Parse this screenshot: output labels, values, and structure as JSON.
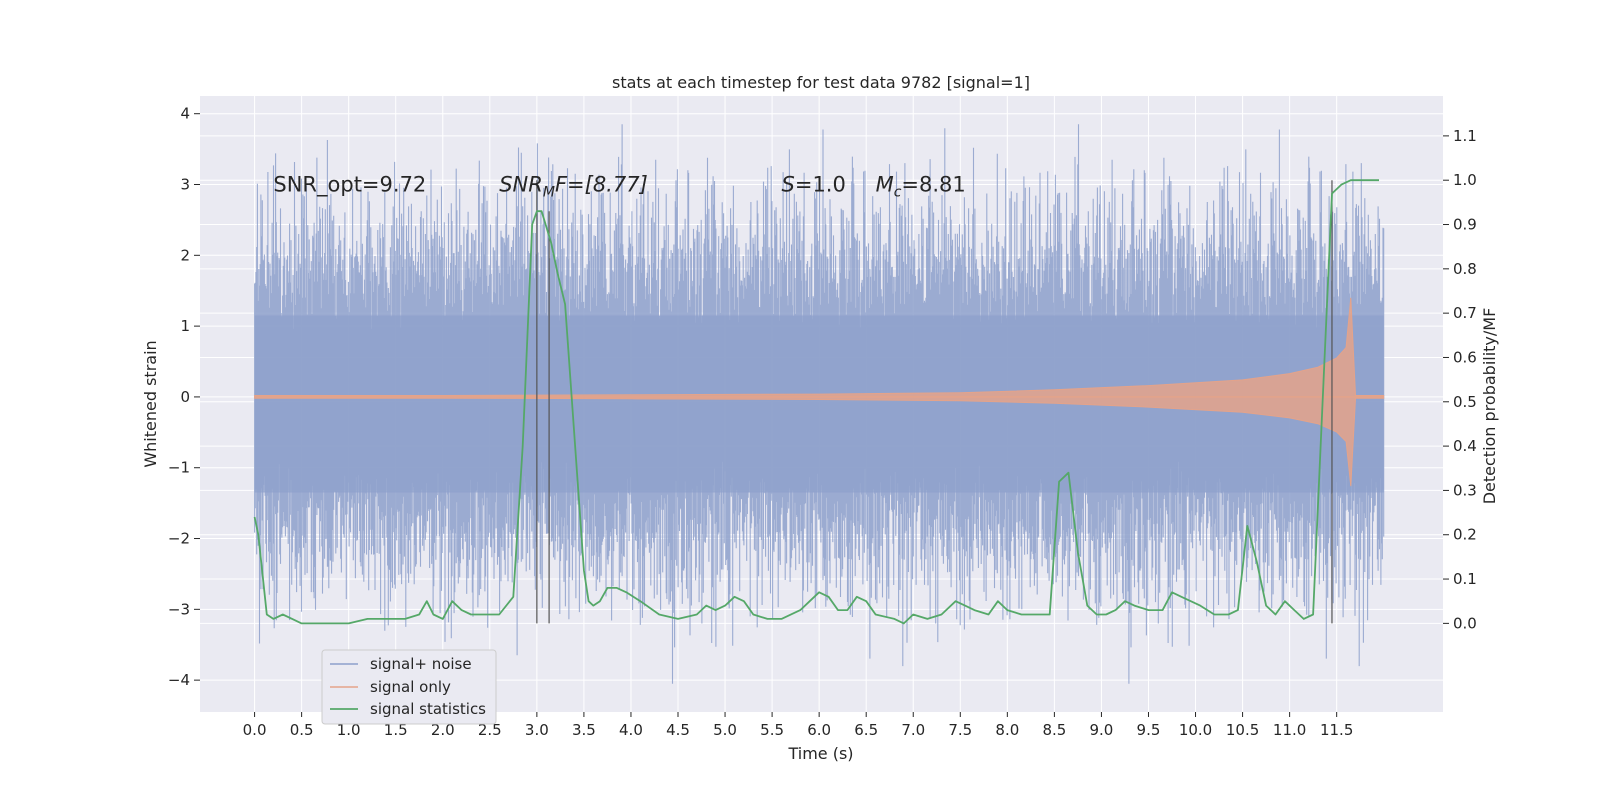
{
  "chart_data": {
    "type": "line",
    "title": "stats at each timestep for test data 9782 [signal=1]",
    "xlabel": "Time (s)",
    "ylabel": "Whitened strain",
    "ylabel_right": "Detection probability/MF",
    "xlim": [
      -0.58,
      12.63
    ],
    "ylim": [
      -4.45,
      4.25
    ],
    "ylim_right": [
      -0.2,
      1.19
    ],
    "x_ticks": [
      0.0,
      0.5,
      1.0,
      1.5,
      2.0,
      2.5,
      3.0,
      3.5,
      4.0,
      4.5,
      5.0,
      5.5,
      6.0,
      6.5,
      7.0,
      7.5,
      8.0,
      8.5,
      9.0,
      9.5,
      10.0,
      10.5,
      11.0,
      11.5
    ],
    "x_tick_labels": [
      "0.0",
      "0.5",
      "1.0",
      "1.5",
      "2.0",
      "2.5",
      "3.0",
      "3.5",
      "4.0",
      "4.5",
      "5.0",
      "5.5",
      "6.0",
      "6.5",
      "7.0",
      "7.5",
      "8.0",
      "8.5",
      "9.0",
      "9.5",
      "10.0",
      "10.5",
      "11.0",
      "11.5"
    ],
    "y_ticks": [
      -4,
      -3,
      -2,
      -1,
      0,
      1,
      2,
      3,
      4
    ],
    "y_tick_labels": [
      "−4",
      "−3",
      "−2",
      "−1",
      "0",
      "1",
      "2",
      "3",
      "4"
    ],
    "y_right_ticks": [
      0.0,
      0.1,
      0.2,
      0.3,
      0.4,
      0.5,
      0.6,
      0.7,
      0.8,
      0.9,
      1.0,
      1.1
    ],
    "y_right_tick_labels": [
      "0.0",
      "0.1",
      "0.2",
      "0.3",
      "0.4",
      "0.5",
      "0.6",
      "0.7",
      "0.8",
      "0.9",
      "1.0",
      "1.1"
    ],
    "grid": true,
    "legend_position": "lower-left",
    "annotations": [
      {
        "text": "SNR_opt=9.72",
        "x": 0.2,
        "y": 3.0
      },
      {
        "text": "SNR",
        "sub": "M",
        "rest": "F=[8.77]",
        "italic": true,
        "x": 2.6,
        "y": 3.0
      },
      {
        "text": "S",
        "rest": "=1.0",
        "italic": true,
        "x": 5.6,
        "y": 3.0
      },
      {
        "text": "M",
        "sub": "c",
        "rest": "=8.81",
        "italic": true,
        "x": 6.6,
        "y": 3.0
      }
    ],
    "vertical_lines": [
      {
        "x": 3.0,
        "from": 0.0,
        "to": 1.0
      },
      {
        "x": 3.13,
        "from": 0.0,
        "to": 0.93
      },
      {
        "x": 11.45,
        "from": 0.0,
        "to": 1.0
      }
    ],
    "series": [
      {
        "name": "signal+ noise",
        "color": "#8da0cb",
        "axis": "left",
        "kind": "noise",
        "x_range": [
          0.0,
          12.0
        ],
        "envelope_sigma": 1.0,
        "peak_max": 3.85,
        "peak_min": -4.05
      },
      {
        "name": "signal only",
        "color": "#e4a38a",
        "axis": "left",
        "kind": "chirp",
        "x": [
          0.0,
          2.0,
          4.0,
          6.0,
          7.5,
          8.5,
          9.5,
          10.5,
          11.0,
          11.3,
          11.5,
          11.6,
          11.65,
          11.7,
          11.8,
          12.0
        ],
        "amplitude": [
          0.02,
          0.02,
          0.03,
          0.04,
          0.06,
          0.1,
          0.16,
          0.24,
          0.33,
          0.42,
          0.55,
          0.7,
          1.4,
          0.02,
          0.02,
          0.02
        ]
      },
      {
        "name": "signal statistics",
        "color": "#55a868",
        "axis": "right",
        "x": [
          0.0,
          0.04,
          0.13,
          0.2,
          0.3,
          0.4,
          0.5,
          0.6,
          0.8,
          1.0,
          1.2,
          1.4,
          1.6,
          1.75,
          1.83,
          1.9,
          2.0,
          2.1,
          2.2,
          2.3,
          2.45,
          2.6,
          2.75,
          2.85,
          2.95,
          3.0,
          3.05,
          3.15,
          3.22,
          3.3,
          3.4,
          3.5,
          3.55,
          3.6,
          3.67,
          3.75,
          3.85,
          3.95,
          4.1,
          4.3,
          4.5,
          4.7,
          4.8,
          4.9,
          5.0,
          5.1,
          5.2,
          5.3,
          5.45,
          5.6,
          5.8,
          5.9,
          6.0,
          6.1,
          6.2,
          6.3,
          6.4,
          6.5,
          6.6,
          6.8,
          6.9,
          7.0,
          7.15,
          7.3,
          7.45,
          7.55,
          7.65,
          7.8,
          7.9,
          8.0,
          8.15,
          8.3,
          8.45,
          8.55,
          8.65,
          8.75,
          8.85,
          8.95,
          9.05,
          9.15,
          9.25,
          9.35,
          9.5,
          9.65,
          9.75,
          9.85,
          9.95,
          10.05,
          10.2,
          10.35,
          10.45,
          10.55,
          10.65,
          10.75,
          10.85,
          10.95,
          11.05,
          11.15,
          11.25,
          11.35,
          11.45,
          11.55,
          11.65,
          11.8,
          11.95
        ],
        "values": [
          0.24,
          0.2,
          0.02,
          0.01,
          0.02,
          0.01,
          0.0,
          0.0,
          0.0,
          0.0,
          0.01,
          0.01,
          0.01,
          0.02,
          0.05,
          0.02,
          0.01,
          0.05,
          0.03,
          0.02,
          0.02,
          0.02,
          0.06,
          0.4,
          0.9,
          0.93,
          0.93,
          0.86,
          0.79,
          0.72,
          0.42,
          0.12,
          0.05,
          0.04,
          0.05,
          0.08,
          0.08,
          0.07,
          0.05,
          0.02,
          0.01,
          0.02,
          0.04,
          0.03,
          0.04,
          0.06,
          0.05,
          0.02,
          0.01,
          0.01,
          0.03,
          0.05,
          0.07,
          0.06,
          0.03,
          0.03,
          0.06,
          0.05,
          0.02,
          0.01,
          0.0,
          0.02,
          0.01,
          0.02,
          0.05,
          0.04,
          0.03,
          0.02,
          0.05,
          0.03,
          0.02,
          0.02,
          0.02,
          0.32,
          0.34,
          0.16,
          0.04,
          0.02,
          0.02,
          0.03,
          0.05,
          0.04,
          0.03,
          0.03,
          0.07,
          0.06,
          0.05,
          0.04,
          0.02,
          0.02,
          0.03,
          0.22,
          0.14,
          0.04,
          0.02,
          0.05,
          0.03,
          0.01,
          0.02,
          0.5,
          0.97,
          0.99,
          1.0,
          1.0,
          1.0
        ]
      }
    ]
  }
}
